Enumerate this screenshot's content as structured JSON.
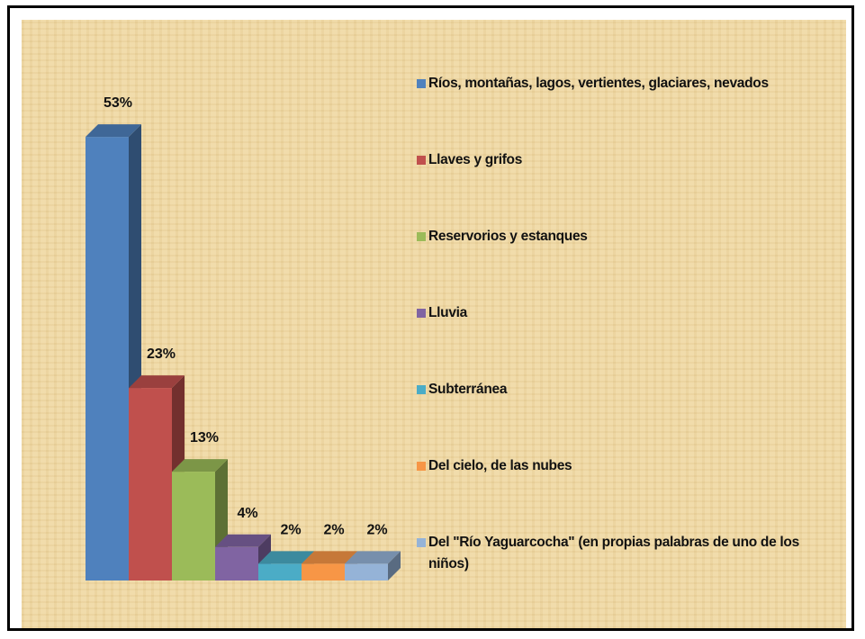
{
  "chart_data": {
    "type": "bar3d",
    "series": [
      {
        "name": "Ríos, montañas, lagos, vertientes, glaciares, nevados",
        "color": "#4f81bd",
        "values": [
          53
        ],
        "value_labels": [
          "53%"
        ]
      },
      {
        "name": "Llaves y grifos",
        "color": "#c0504d",
        "values": [
          23
        ],
        "value_labels": [
          "23%"
        ]
      },
      {
        "name": "Reservorios y estanques",
        "color": "#9bbb59",
        "values": [
          13
        ],
        "value_labels": [
          "13%"
        ]
      },
      {
        "name": "Lluvia",
        "color": "#8064a2",
        "values": [
          4
        ],
        "value_labels": [
          "4%"
        ]
      },
      {
        "name": "Subterránea",
        "color": "#4bacc6",
        "values": [
          2
        ],
        "value_labels": [
          "2%"
        ]
      },
      {
        "name": "Del cielo, de las nubes",
        "color": "#f79646",
        "values": [
          2
        ],
        "value_labels": [
          "2%"
        ]
      },
      {
        "name": "Del \"Río Yaguarcocha\" (en propias palabras de uno de los niños)",
        "color": "#95b3d7",
        "values": [
          2
        ],
        "value_labels": [
          "2%"
        ]
      }
    ],
    "legend": "right"
  }
}
